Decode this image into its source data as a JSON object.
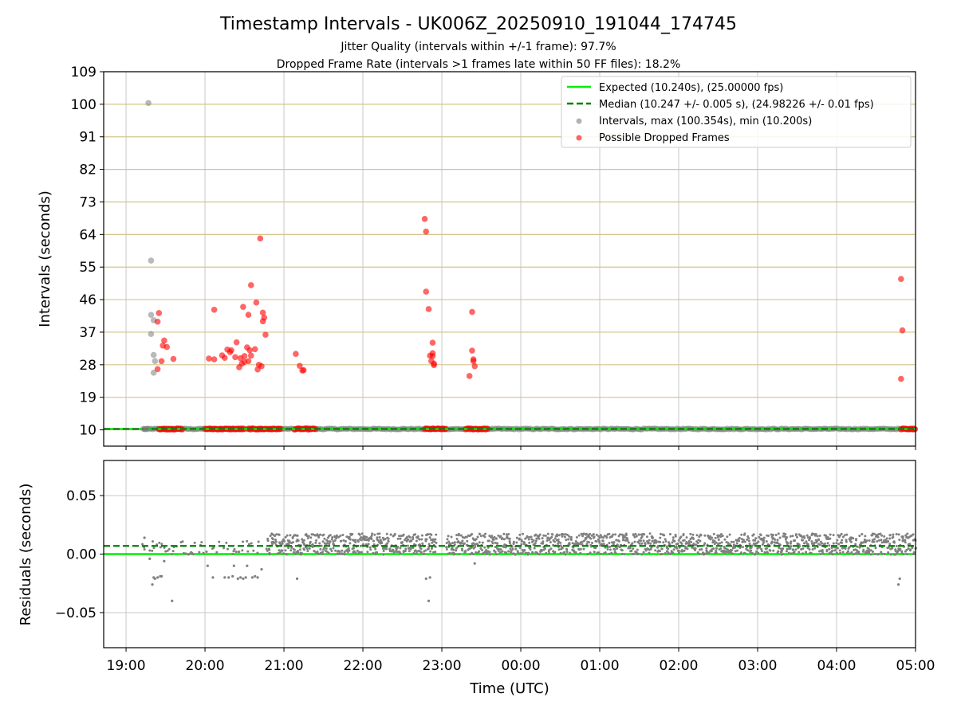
{
  "colors": {
    "expected": "#00ee00",
    "median": "#008000",
    "intervals": "#808080",
    "dropped": "#ff0000",
    "hgrid_top": "#d4c48a",
    "grid": "#c8c8c8"
  },
  "chart_data": [
    {
      "type": "scatter",
      "title": "Timestamp Intervals - UK006Z_20250910_191044_174745",
      "subtitle_1": "Jitter Quality (intervals within +/-1 frame): 97.7%",
      "subtitle_2": "Dropped Frame Rate (intervals >1 frames late within 50 FF files): 18.2%",
      "ylabel": "Intervals (seconds)",
      "ylim": [
        5.5,
        109
      ],
      "y_ticks": [
        10,
        19,
        28,
        37,
        46,
        55,
        64,
        73,
        82,
        91,
        100,
        109
      ],
      "grid": "horizontal",
      "legend_position": "top-right",
      "legend": [
        "Expected (10.240s), (25.00000 fps)",
        "Median (10.247 +/- 0.005 s), (24.98226 +/- 0.01 fps)",
        "Intervals, max (100.354s), min (10.200s)",
        "Possible Dropped Frames"
      ],
      "expected_value": 10.24,
      "median_value": 10.247,
      "intervals_scatter": [
        [
          "19:17",
          100.354
        ],
        [
          "19:19",
          56.8
        ],
        [
          "19:19",
          41.8
        ],
        [
          "19:21",
          40.3
        ],
        [
          "19:19",
          36.5
        ],
        [
          "19:21",
          30.7
        ],
        [
          "19:22",
          29.0
        ],
        [
          "19:21",
          25.8
        ],
        [
          "19:14",
          10.2
        ],
        [
          "19:16",
          10.2
        ]
      ],
      "dropped_scatter": [
        [
          "19:25",
          42.3
        ],
        [
          "19:24",
          39.9
        ],
        [
          "19:29",
          34.7
        ],
        [
          "19:28",
          33.3
        ],
        [
          "19:31",
          32.9
        ],
        [
          "19:27",
          29.0
        ],
        [
          "19:36",
          29.6
        ],
        [
          "19:24",
          26.8
        ],
        [
          "20:03",
          29.7
        ],
        [
          "20:07",
          29.5
        ],
        [
          "20:07",
          43.2
        ],
        [
          "20:13",
          30.6
        ],
        [
          "20:15",
          29.9
        ],
        [
          "20:17",
          32.2
        ],
        [
          "20:19",
          31.5
        ],
        [
          "20:20",
          32.0
        ],
        [
          "20:23",
          30.1
        ],
        [
          "20:24",
          34.2
        ],
        [
          "20:26",
          27.3
        ],
        [
          "20:27",
          29.8
        ],
        [
          "20:28",
          28.3
        ],
        [
          "20:30",
          28.8
        ],
        [
          "20:29",
          44.0
        ],
        [
          "20:30",
          30.4
        ],
        [
          "20:32",
          32.8
        ],
        [
          "20:33",
          29.0
        ],
        [
          "20:34",
          32.0
        ],
        [
          "20:35",
          30.5
        ],
        [
          "20:33",
          41.8
        ],
        [
          "20:35",
          50.0
        ],
        [
          "20:38",
          32.3
        ],
        [
          "20:39",
          45.2
        ],
        [
          "20:40",
          26.7
        ],
        [
          "20:41",
          28.0
        ],
        [
          "20:42",
          62.9
        ],
        [
          "20:43",
          27.6
        ],
        [
          "20:44",
          42.4
        ],
        [
          "20:44",
          40.0
        ],
        [
          "20:45",
          41.0
        ],
        [
          "20:46",
          36.3
        ],
        [
          "21:09",
          31.0
        ],
        [
          "21:12",
          27.7
        ],
        [
          "21:14",
          26.4
        ],
        [
          "21:15",
          26.5
        ],
        [
          "22:47",
          68.3
        ],
        [
          "22:48",
          64.8
        ],
        [
          "22:48",
          48.2
        ],
        [
          "22:50",
          43.4
        ],
        [
          "22:51",
          30.5
        ],
        [
          "22:52",
          29.0
        ],
        [
          "22:53",
          31.2
        ],
        [
          "22:53",
          30.4
        ],
        [
          "22:54",
          27.9
        ],
        [
          "22:53",
          34.1
        ],
        [
          "22:54",
          28.3
        ],
        [
          "23:21",
          24.9
        ],
        [
          "23:23",
          42.6
        ],
        [
          "23:23",
          31.9
        ],
        [
          "23:24",
          29.5
        ],
        [
          "23:25",
          27.6
        ],
        [
          "23:24",
          29.0
        ],
        [
          "04:49",
          51.7
        ],
        [
          "04:50",
          37.5
        ],
        [
          "04:49",
          24.1
        ]
      ],
      "dropped_at_baseline_ranges": [
        [
          "19:25",
          "19:43"
        ],
        [
          "20:00",
          "20:30"
        ],
        [
          "20:33",
          "20:47"
        ],
        [
          "20:48",
          "20:58"
        ],
        [
          "21:08",
          "21:24"
        ],
        [
          "22:47",
          "23:03"
        ],
        [
          "23:18",
          "23:35"
        ],
        [
          "04:49",
          "05:00"
        ]
      ]
    },
    {
      "type": "scatter",
      "ylabel": "Residuals (seconds)",
      "xlabel": "Time (UTC)",
      "ylim": [
        -0.08,
        0.08
      ],
      "y_ticks": [
        0.05,
        0.0,
        -0.05
      ],
      "y_tick_labels": [
        "0.05",
        "0.00",
        "−0.05"
      ],
      "grid": "both",
      "expected_value": 0.0,
      "median_value": 0.007,
      "x_tick_labels": [
        "19:00",
        "20:00",
        "21:00",
        "22:00",
        "23:00",
        "00:00",
        "01:00",
        "02:00",
        "03:00",
        "04:00",
        "05:00"
      ],
      "xlim": [
        "18:43",
        "05:00"
      ],
      "outliers": [
        [
          "19:14",
          0.014
        ],
        [
          "19:18",
          -0.004
        ],
        [
          "19:20",
          -0.026
        ],
        [
          "19:21",
          -0.02
        ],
        [
          "19:22",
          -0.021
        ],
        [
          "19:24",
          -0.02
        ],
        [
          "19:26",
          -0.019
        ],
        [
          "19:27",
          -0.019
        ],
        [
          "19:29",
          -0.006
        ],
        [
          "19:35",
          -0.04
        ],
        [
          "20:02",
          -0.01
        ],
        [
          "20:06",
          -0.02
        ],
        [
          "20:15",
          -0.02
        ],
        [
          "20:18",
          -0.02
        ],
        [
          "20:21",
          -0.019
        ],
        [
          "20:22",
          -0.01
        ],
        [
          "20:25",
          -0.021
        ],
        [
          "20:27",
          -0.02
        ],
        [
          "20:29",
          -0.021
        ],
        [
          "20:31",
          -0.02
        ],
        [
          "20:32",
          -0.01
        ],
        [
          "20:36",
          -0.02
        ],
        [
          "20:38",
          -0.019
        ],
        [
          "20:40",
          -0.02
        ],
        [
          "20:43",
          -0.013
        ],
        [
          "21:10",
          -0.021
        ],
        [
          "22:48",
          -0.021
        ],
        [
          "22:50",
          -0.04
        ],
        [
          "22:51",
          -0.02
        ],
        [
          "23:25",
          -0.008
        ],
        [
          "04:47",
          -0.026
        ],
        [
          "04:48",
          -0.021
        ]
      ]
    }
  ]
}
